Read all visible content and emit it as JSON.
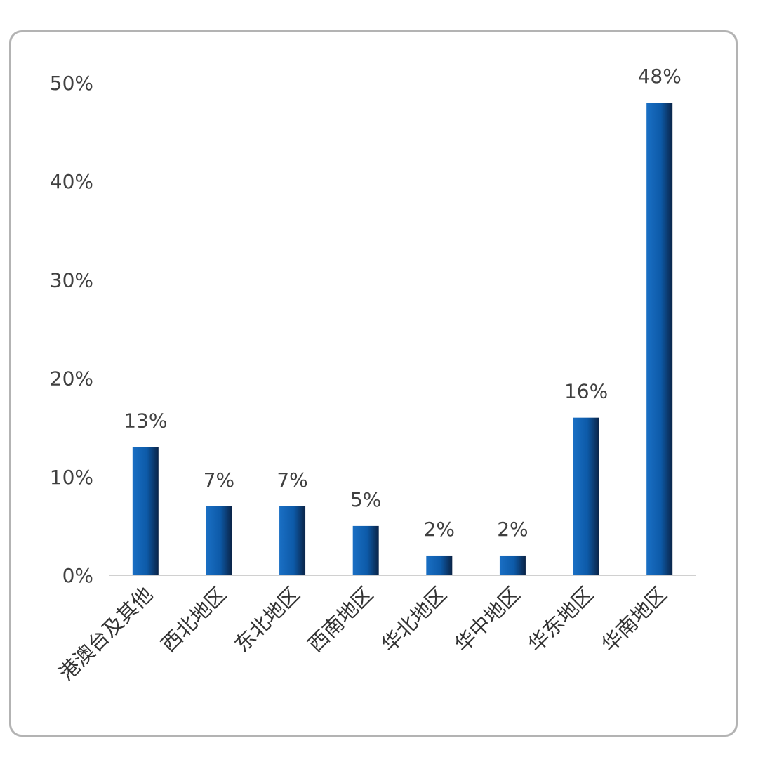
{
  "chart_data": {
    "type": "bar",
    "categories": [
      "港澳台及其他",
      "西北地区",
      "东北地区",
      "西南地区",
      "华北地区",
      "华中地区",
      "华东地区",
      "华南地区"
    ],
    "values": [
      13,
      7,
      7,
      5,
      2,
      2,
      16,
      48
    ],
    "data_labels": [
      "13%",
      "7%",
      "7%",
      "5%",
      "2%",
      "2%",
      "16%",
      "48%"
    ],
    "y_ticks": [
      0,
      10,
      20,
      30,
      40,
      50
    ],
    "y_tick_labels": [
      "0%",
      "10%",
      "20%",
      "30%",
      "40%",
      "50%"
    ],
    "ylim": [
      0,
      50
    ],
    "grid": false,
    "legend": "none",
    "colors": {
      "bar_light": "#1a6fc4",
      "bar_mid": "#0d5aa8",
      "bar_dark": "#0a2346",
      "axis": "#d0d0d0",
      "frame": "#b3b3b3",
      "text": "#404040"
    }
  }
}
